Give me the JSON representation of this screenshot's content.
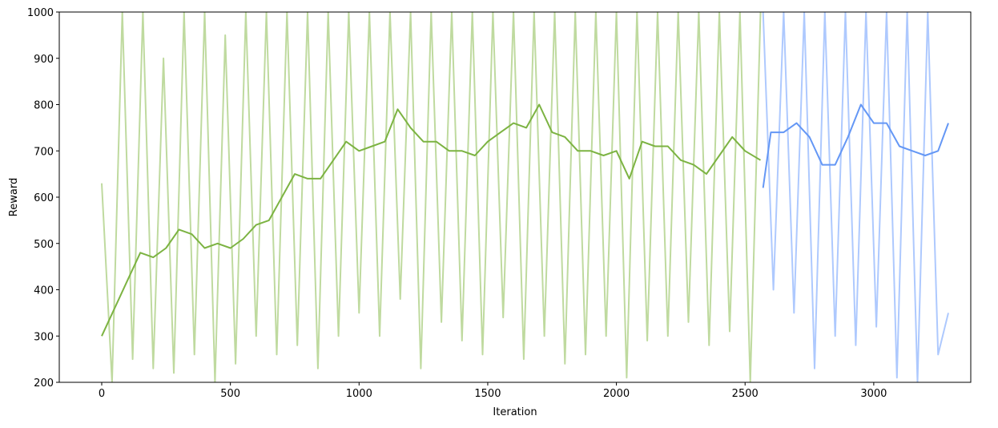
{
  "chart_data": {
    "type": "line",
    "x_label": "Iteration",
    "y_label": "Reward",
    "xlim": [
      -165,
      3377
    ],
    "ylim": [
      200,
      1000
    ],
    "xticks": [
      0,
      500,
      1000,
      1500,
      2000,
      2500,
      3000
    ],
    "yticks": [
      200,
      300,
      400,
      500,
      600,
      700,
      800,
      900,
      1000
    ],
    "series": [
      {
        "color": "#bfda9f",
        "width": 2,
        "x": [
          0,
          40,
          80,
          120,
          160,
          200,
          240,
          280,
          320,
          360,
          400,
          440,
          480,
          520,
          560,
          600,
          640,
          680,
          720,
          760,
          800,
          840,
          880,
          920,
          960,
          1000,
          1040,
          1080,
          1120,
          1160,
          1200,
          1240,
          1280,
          1320,
          1360,
          1400,
          1440,
          1480,
          1520,
          1560,
          1600,
          1640,
          1680,
          1720,
          1760,
          1800,
          1840,
          1880,
          1920,
          1960,
          2000,
          2040,
          2080,
          2120,
          2160,
          2200,
          2240,
          2280,
          2320,
          2360,
          2400,
          2440,
          2480,
          2520,
          2560
        ],
        "values": [
          630,
          200,
          1000,
          250,
          1000,
          230,
          900,
          220,
          1000,
          260,
          1000,
          200,
          950,
          240,
          1000,
          300,
          1000,
          260,
          1000,
          280,
          1000,
          230,
          1000,
          300,
          1000,
          350,
          1000,
          300,
          1000,
          380,
          1000,
          230,
          1000,
          330,
          1000,
          290,
          1000,
          260,
          1000,
          340,
          1000,
          250,
          1000,
          300,
          1000,
          240,
          1000,
          260,
          1000,
          300,
          1000,
          210,
          1000,
          290,
          1000,
          300,
          1000,
          330,
          1000,
          280,
          1000,
          310,
          1000,
          200,
          1000
        ]
      },
      {
        "color": "#7cb342",
        "width": 2,
        "x": [
          0,
          50,
          100,
          150,
          200,
          250,
          300,
          350,
          400,
          450,
          500,
          550,
          600,
          650,
          700,
          750,
          800,
          850,
          900,
          950,
          1000,
          1050,
          1100,
          1150,
          1200,
          1250,
          1300,
          1350,
          1400,
          1450,
          1500,
          1550,
          1600,
          1650,
          1700,
          1750,
          1800,
          1850,
          1900,
          1950,
          2000,
          2050,
          2100,
          2150,
          2200,
          2250,
          2300,
          2350,
          2400,
          2450,
          2500,
          2560
        ],
        "values": [
          300,
          360,
          420,
          480,
          470,
          490,
          530,
          520,
          490,
          500,
          490,
          510,
          540,
          550,
          600,
          650,
          640,
          640,
          680,
          720,
          700,
          710,
          720,
          790,
          750,
          720,
          720,
          700,
          700,
          690,
          720,
          740,
          760,
          750,
          800,
          740,
          730,
          700,
          700,
          690,
          700,
          640,
          720,
          710,
          710,
          680,
          670,
          650,
          690,
          730,
          700,
          680
        ]
      },
      {
        "color": "#aec9fe",
        "width": 2,
        "x": [
          2570,
          2610,
          2650,
          2690,
          2730,
          2770,
          2810,
          2850,
          2890,
          2930,
          2970,
          3010,
          3050,
          3090,
          3130,
          3170,
          3210,
          3250,
          3290
        ],
        "values": [
          1000,
          400,
          1000,
          350,
          1000,
          230,
          1000,
          300,
          1000,
          280,
          1000,
          320,
          1000,
          210,
          1000,
          200,
          1000,
          260,
          350
        ]
      },
      {
        "color": "#6497f5",
        "width": 2,
        "x": [
          2570,
          2600,
          2650,
          2700,
          2750,
          2800,
          2850,
          2900,
          2950,
          3000,
          3050,
          3100,
          3150,
          3200,
          3250,
          3290
        ],
        "values": [
          620,
          740,
          740,
          760,
          730,
          670,
          670,
          730,
          800,
          760,
          760,
          710,
          700,
          690,
          700,
          760
        ]
      }
    ]
  }
}
